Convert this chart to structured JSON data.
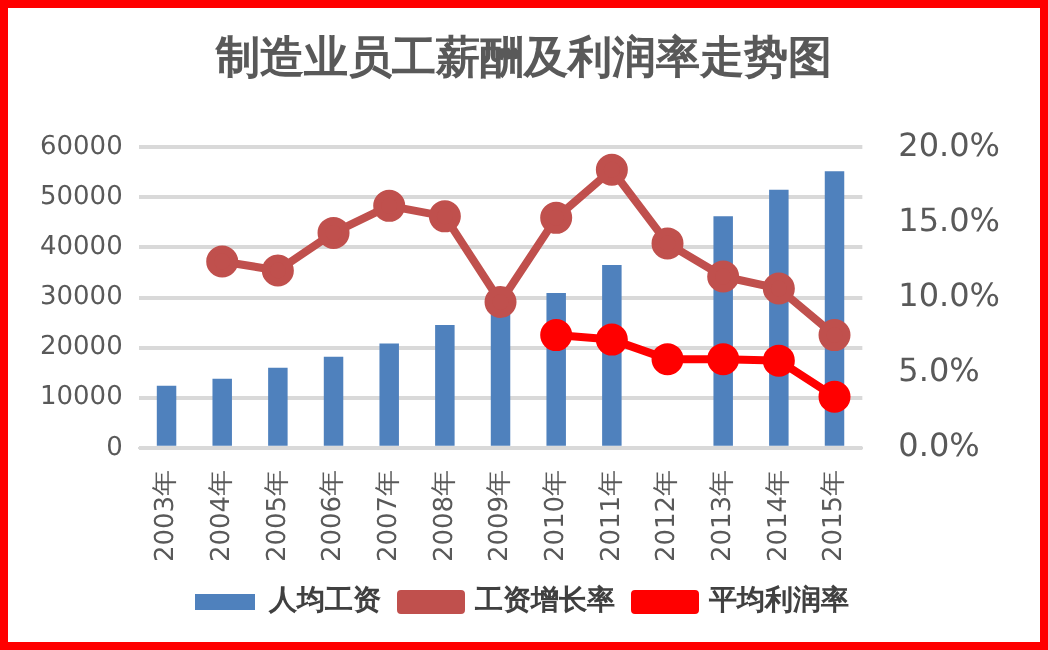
{
  "chart_data": {
    "type": "bar",
    "title": "制造业员工薪酬及利润率走势图",
    "categories": [
      "2003年",
      "2004年",
      "2005年",
      "2006年",
      "2007年",
      "2008年",
      "2009年",
      "2010年",
      "2011年",
      "2012年",
      "2013年",
      "2014年",
      "2015年"
    ],
    "series": [
      {
        "name": "人均工资",
        "color": "#4f81bd",
        "values": [
          12400,
          13800,
          16000,
          18200,
          20800,
          24500,
          27000,
          30900,
          36500,
          null,
          46200,
          51500,
          55200
        ]
      },
      {
        "name": "工资增长率",
        "type": "line",
        "axis": "y2",
        "color": "#c0504d",
        "values": [
          null,
          12.4,
          11.8,
          14.3,
          16.1,
          15.4,
          9.7,
          15.3,
          18.5,
          13.6,
          11.4,
          10.6,
          7.5
        ]
      },
      {
        "name": "平均利润率",
        "type": "line",
        "axis": "y2",
        "color": "#ff0000",
        "values": [
          null,
          null,
          null,
          null,
          null,
          null,
          null,
          7.5,
          7.2,
          5.9,
          5.9,
          5.8,
          3.4
        ]
      }
    ],
    "ylim": [
      0,
      60000
    ],
    "yticks": [
      0,
      10000,
      20000,
      30000,
      40000,
      50000,
      60000
    ],
    "y2lim": [
      0,
      20
    ],
    "y2ticks": [
      {
        "value": 0,
        "label": "0.0%"
      },
      {
        "value": 5,
        "label": "5.0%"
      },
      {
        "value": 10,
        "label": "10.0%"
      },
      {
        "value": 15,
        "label": "15.0%"
      },
      {
        "value": 20,
        "label": "20.0%"
      }
    ],
    "grid": "y",
    "legend": "bottom",
    "marker": "circle",
    "line_style": "solid"
  }
}
